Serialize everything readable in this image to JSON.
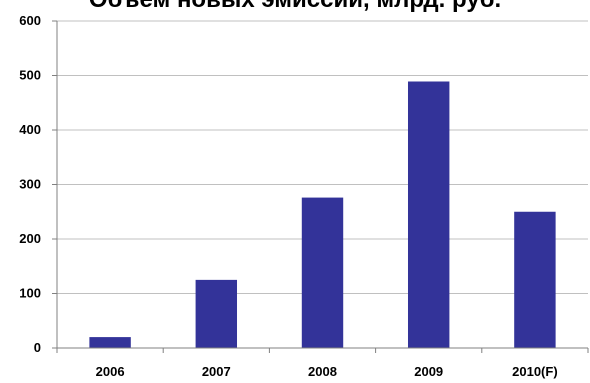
{
  "chart_data": {
    "type": "bar",
    "title": "Объем новых эмиссий, млрд. руб.",
    "categories": [
      "2006",
      "2007",
      "2008",
      "2009",
      "2010(F)"
    ],
    "values": [
      20,
      125,
      276,
      489,
      250
    ],
    "xlabel": "",
    "ylabel": "",
    "ylim": [
      0,
      600
    ],
    "yticks": [
      "0",
      "100",
      "200",
      "300",
      "400",
      "500",
      "600"
    ],
    "grid": true,
    "legend": "none",
    "colors": {
      "bar": "#333399",
      "grid": "#c0c0c0",
      "axis": "#808080"
    }
  }
}
